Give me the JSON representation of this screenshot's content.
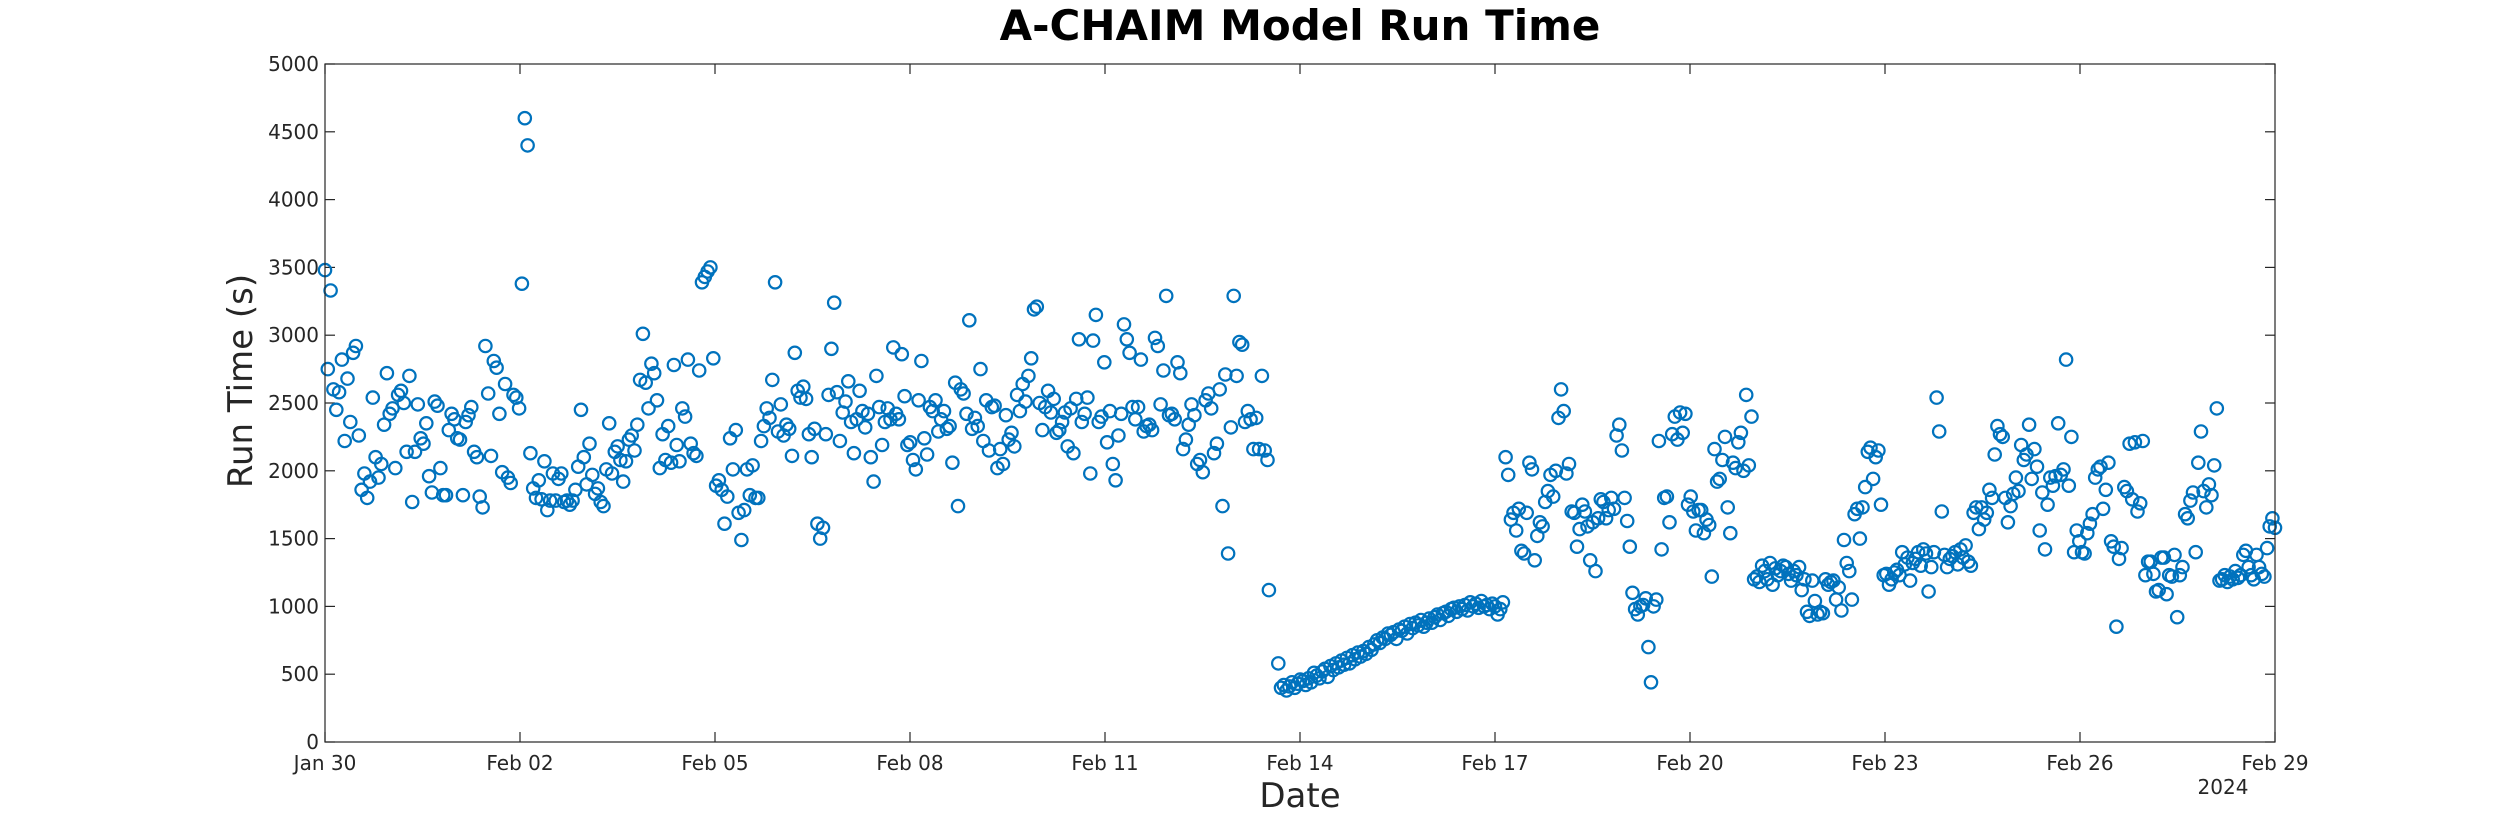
{
  "chart_data": {
    "type": "scatter",
    "title": "A-CHAIM Model Run Time",
    "xlabel": "Date",
    "ylabel": "Run Time (s)",
    "year_label": "2024",
    "xlim": [
      "2024-01-30",
      "2024-02-29"
    ],
    "ylim": [
      0,
      5000
    ],
    "x_ticks": [
      {
        "date": "2024-01-30",
        "label": "Jan 30"
      },
      {
        "date": "2024-02-02",
        "label": "Feb 02"
      },
      {
        "date": "2024-02-05",
        "label": "Feb 05"
      },
      {
        "date": "2024-02-08",
        "label": "Feb 08"
      },
      {
        "date": "2024-02-11",
        "label": "Feb 11"
      },
      {
        "date": "2024-02-14",
        "label": "Feb 14"
      },
      {
        "date": "2024-02-17",
        "label": "Feb 17"
      },
      {
        "date": "2024-02-20",
        "label": "Feb 20"
      },
      {
        "date": "2024-02-23",
        "label": "Feb 23"
      },
      {
        "date": "2024-02-26",
        "label": "Feb 26"
      },
      {
        "date": "2024-02-29",
        "label": "Feb 29"
      }
    ],
    "y_ticks": [
      0,
      500,
      1000,
      1500,
      2000,
      2500,
      3000,
      3500,
      4000,
      4500,
      5000
    ],
    "grid": false,
    "marker": "open-circle",
    "color": "#0072BD",
    "segments": [
      {
        "start": "2024-01-30T00:00",
        "end": "2024-02-13T12:00",
        "values": [
          3480,
          2750,
          3330,
          2600,
          2450,
          2580,
          2820,
          2220,
          2680,
          2360,
          2870,
          2920,
          2260,
          1860,
          1980,
          1800,
          1920,
          2540,
          2100,
          1950,
          2050,
          2340,
          2720,
          2420,
          2460,
          2020,
          2560,
          2590,
          2500,
          2140,
          2700,
          1770,
          2140,
          2490,
          2240,
          2200,
          2350,
          1960,
          1840,
          2510,
          2480,
          2020,
          1820,
          1820,
          2300,
          2420,
          2380,
          2240,
          2230,
          1820,
          2360,
          2410,
          2470,
          2140,
          2100,
          1810,
          1730,
          2920,
          2570,
          2110,
          2810,
          2760,
          2420,
          1990,
          2640,
          1950,
          1910,
          2560,
          2540,
          2460,
          3380,
          4600,
          4400,
          2130,
          1870,
          1800,
          1930,
          1790,
          2070,
          1710,
          1780,
          1980,
          1780,
          1940,
          1980,
          1770,
          1780,
          1750,
          1780,
          1860,
          2030,
          2450,
          2100,
          1900,
          2200,
          1970,
          1830,
          1870,
          1770,
          1740,
          2010,
          2350,
          1980,
          2140,
          2180,
          2080,
          1920,
          2070,
          2230,
          2260,
          2150,
          2340,
          2670,
          3010,
          2650,
          2460,
          2790,
          2720,
          2520,
          2020,
          2270,
          2080,
          2330,
          2060,
          2780,
          2190,
          2070,
          2460,
          2400,
          2820,
          2200,
          2130,
          2110,
          2740,
          3390,
          3430,
          3470,
          3500,
          2830,
          1890,
          1930,
          1860,
          1610,
          1810,
          2240,
          2010,
          2300,
          1690,
          1490,
          1710,
          2010,
          1820,
          2040,
          1800,
          1800,
          2220,
          2330,
          2460,
          2390,
          2670,
          3390,
          2290,
          2490,
          2260,
          2340,
          2310,
          2110,
          2870,
          2590,
          2540,
          2620,
          2530,
          2270,
          2100,
          2310,
          1610,
          1500,
          1580,
          2270,
          2560,
          2900,
          3240,
          2580,
          2220,
          2430,
          2510,
          2660,
          2360,
          2130,
          2380,
          2590,
          2440,
          2320,
          2420,
          2100,
          1920,
          2700,
          2470,
          2190,
          2360,
          2460,
          2380,
          2910,
          2420,
          2380,
          2860,
          2550,
          2190,
          2210,
          2080,
          2010,
          2520,
          2810,
          2240,
          2120,
          2470,
          2440,
          2520,
          2290,
          2380,
          2440,
          2310,
          2330,
          2060,
          2650,
          1740,
          2600,
          2570,
          2420,
          3110,
          2310,
          2390,
          2330,
          2750,
          2220,
          2520,
          2150,
          2470,
          2480,
          2020,
          2160,
          2050,
          2410,
          2230,
          2280,
          2180,
          2560,
          2440,
          2640,
          2510,
          2700,
          2830,
          3190,
          3210,
          2500,
          2300,
          2470,
          2590,
          2430,
          2530,
          2280,
          2300,
          2360,
          2430,
          2180,
          2460,
          2130,
          2530,
          2970,
          2360,
          2420,
          2540,
          1980,
          2960,
          3150,
          2360,
          2400,
          2800,
          2210,
          2440,
          2050,
          1930,
          2260,
          2420,
          3080,
          2970,
          2870,
          2470,
          2380,
          2470,
          2820,
          2290,
          2330,
          2340,
          2300,
          2980,
          2920,
          2490,
          2740,
          3290,
          2410,
          2420,
          2380,
          2800,
          2720,
          2160,
          2230,
          2340,
          2490,
          2410,
          2050,
          2080,
          1990,
          2520,
          2570,
          2460,
          2130,
          2200,
          2600,
          1740,
          2710,
          1390,
          2320,
          3290,
          2700,
          2950,
          2930,
          2360,
          2440,
          2380,
          2160,
          2390,
          2160,
          2700,
          2150,
          2080
        ]
      },
      {
        "start": "2024-02-13T12:30",
        "end": "2024-02-13T16:00",
        "values": [
          1120,
          580
        ]
      },
      {
        "start": "2024-02-13T17:00",
        "end": "2024-02-16T23:00",
        "values": [
          400,
          420,
          380,
          410,
          440,
          400,
          430,
          460,
          450,
          420,
          470,
          440,
          510,
          490,
          470,
          520,
          540,
          480,
          560,
          530,
          580,
          550,
          600,
          570,
          620,
          580,
          640,
          610,
          660,
          630,
          670,
          650,
          700,
          680,
          720,
          750,
          730,
          770,
          760,
          800,
          790,
          810,
          760,
          830,
          820,
          850,
          800,
          870,
          840,
          880,
          860,
          900,
          850,
          880,
          910,
          880,
          920,
          940,
          900,
          950,
          960,
          930,
          980,
          990,
          960,
          1000,
          980,
          1010,
          970,
          1030,
          1000,
          1020,
          990,
          1040,
          1000,
          1010,
          980,
          1020
        ]
      },
      {
        "start": "2024-02-17T00:00",
        "end": "2024-02-29T00:00",
        "values": [
          1000,
          940,
          980,
          1030,
          2100,
          1970,
          1640,
          1690,
          1560,
          1720,
          1410,
          1390,
          1690,
          2060,
          2010,
          1340,
          1520,
          1620,
          1590,
          1770,
          1850,
          1970,
          1810,
          2000,
          2390,
          2600,
          2440,
          1980,
          2050,
          1700,
          1690,
          1440,
          1570,
          1750,
          1700,
          1590,
          1340,
          1620,
          1260,
          1650,
          1790,
          1770,
          1650,
          1710,
          1800,
          1720,
          2260,
          2340,
          2150,
          1800,
          1630,
          1440,
          1100,
          980,
          940,
          1000,
          1010,
          1060,
          700,
          440,
          1000,
          1050,
          2220,
          1420,
          1800,
          1810,
          1620,
          2270,
          2400,
          2230,
          2430,
          2280,
          2420,
          1750,
          1810,
          1700,
          1560,
          1710,
          1710,
          1540,
          1640,
          1600,
          1220,
          2160,
          1920,
          1940,
          2080,
          2250,
          1730,
          1540,
          2060,
          2020,
          2210,
          2280,
          2000,
          2560,
          2040,
          2400,
          1200,
          1220,
          1180,
          1300,
          1260,
          1200,
          1320,
          1160,
          1280,
          1230,
          1260,
          1300,
          1290,
          1240,
          1190,
          1260,
          1230,
          1290,
          1120,
          1200,
          960,
          930,
          1190,
          1040,
          940,
          960,
          950,
          1200,
          1160,
          1180,
          1190,
          1050,
          1140,
          970,
          1490,
          1320,
          1260,
          1050,
          1680,
          1720,
          1500,
          1730,
          1880,
          2140,
          2170,
          1940,
          2100,
          2150,
          1750,
          1230,
          1240,
          1160,
          1200,
          1250,
          1270,
          1230,
          1400,
          1310,
          1360,
          1190,
          1320,
          1350,
          1400,
          1300,
          1420,
          1390,
          1110,
          1290,
          1400,
          2540,
          2290,
          1700,
          1380,
          1290,
          1350,
          1370,
          1400,
          1310,
          1420,
          1360,
          1450,
          1330,
          1300,
          1690,
          1730,
          1570,
          1730,
          1640,
          1690,
          1860,
          1800,
          2120,
          2330,
          2270,
          2250,
          1800,
          1620,
          1740,
          1830,
          1950,
          1850,
          2190,
          2080,
          2120,
          2340,
          1940,
          2160,
          2030,
          1560,
          1840,
          1420,
          1750,
          1950,
          1890,
          1960,
          2350,
          1970,
          2010,
          2820,
          1890,
          2250,
          1400,
          1560,
          1480,
          1400,
          1390,
          1540,
          1610,
          1680,
          1950,
          2010,
          2030,
          1720,
          1860,
          2060,
          1480,
          1440,
          850,
          1350,
          1430,
          1880,
          1850,
          2200,
          1790,
          2210,
          1700,
          1760,
          2220,
          1230,
          1330,
          1330,
          1240,
          1110,
          1120,
          1360,
          1360,
          1090,
          1230,
          1220,
          1380,
          920,
          1230,
          1290,
          1680,
          1650,
          1780,
          1840,
          1400,
          2060,
          2290,
          1850,
          1730,
          1900,
          1820,
          2040,
          2460,
          1190,
          1200,
          1230,
          1180,
          1220,
          1200,
          1260,
          1210,
          1230,
          1380,
          1410,
          1290,
          1230,
          1200,
          1380,
          1290,
          1240,
          1220,
          1430,
          1590,
          1650,
          1580
        ]
      }
    ]
  }
}
